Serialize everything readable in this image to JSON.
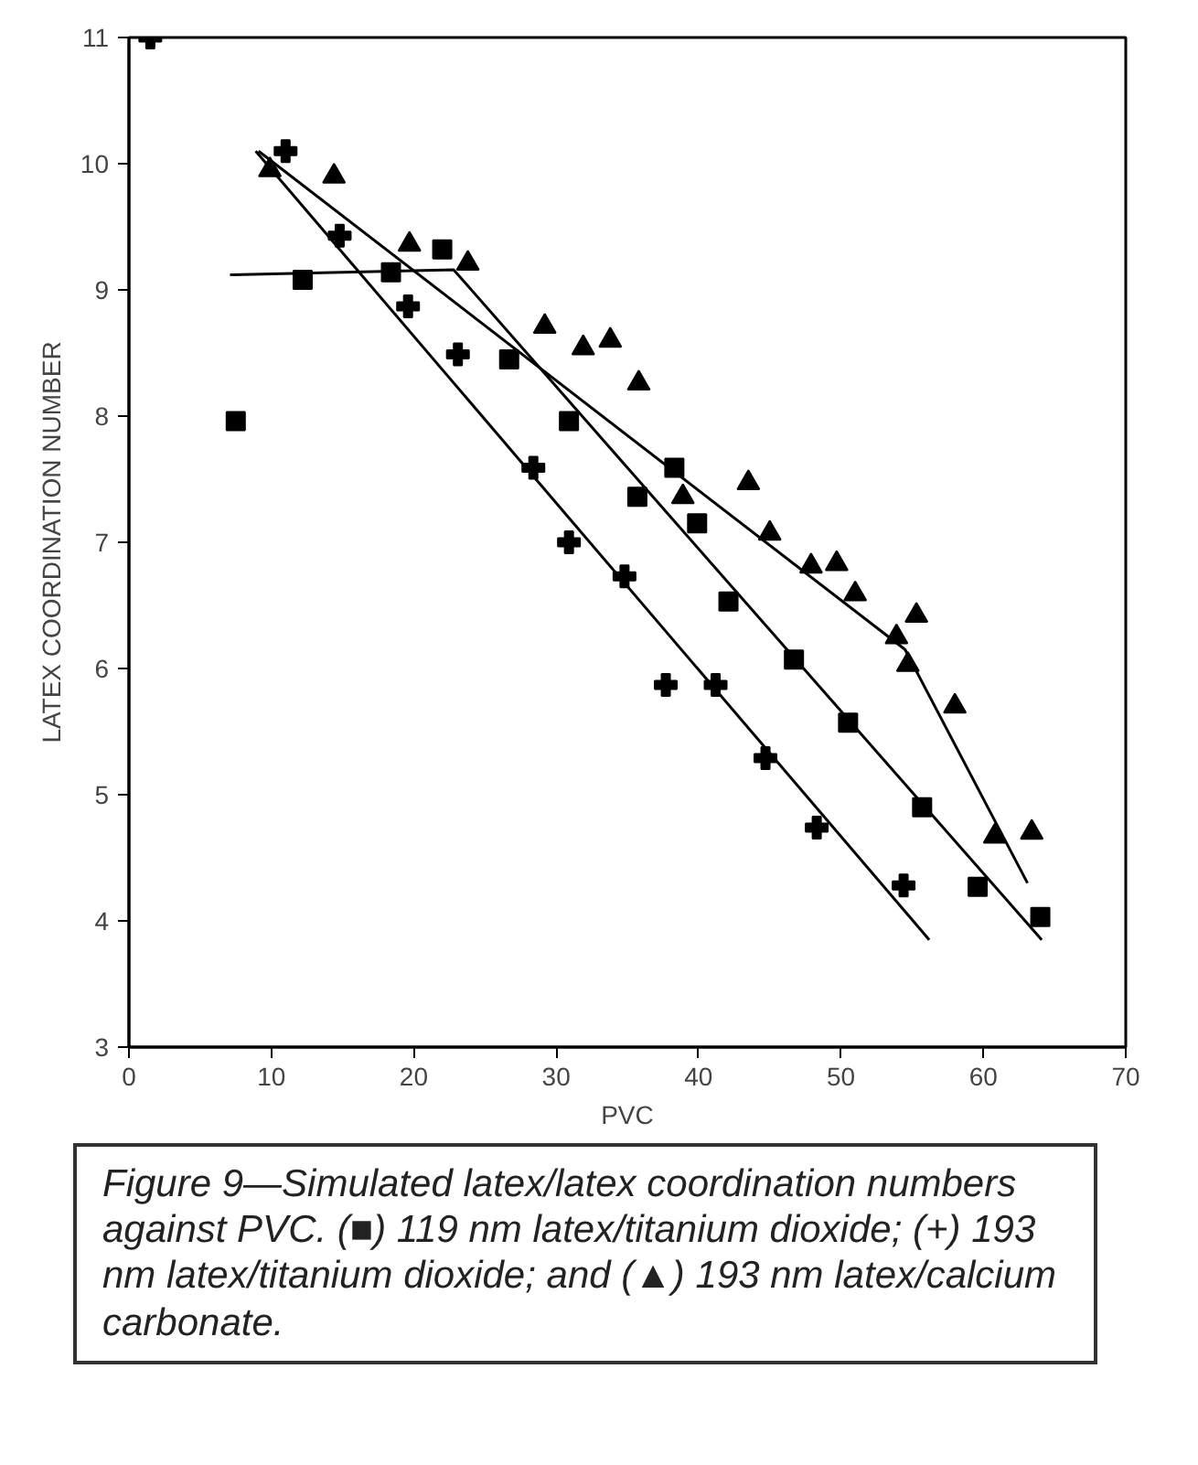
{
  "chart_data": {
    "type": "scatter",
    "xlabel": "PVC",
    "ylabel": "LATEX COORDINATION NUMBER",
    "xlim": [
      0,
      70
    ],
    "ylim": [
      3,
      11
    ],
    "xticks": [
      0,
      10,
      20,
      30,
      40,
      50,
      60,
      70
    ],
    "yticks": [
      3,
      4,
      5,
      6,
      7,
      8,
      9,
      10,
      11
    ],
    "grid": false,
    "series": [
      {
        "marker": "square",
        "color": "#000000",
        "x": [
          7.5,
          12.2,
          18.4,
          22.0,
          26.7,
          30.9,
          35.7,
          38.3,
          39.9,
          42.1,
          46.7,
          50.5,
          55.7,
          59.6,
          64.0
        ],
        "values": [
          7.96,
          9.08,
          9.14,
          9.32,
          8.45,
          7.96,
          7.36,
          7.59,
          7.15,
          6.53,
          6.07,
          5.57,
          4.9,
          4.27,
          4.03
        ]
      },
      {
        "marker": "cross",
        "color": "#000000",
        "x": [
          1.5,
          11.0,
          14.8,
          19.6,
          23.1,
          28.4,
          30.9,
          34.8,
          37.7,
          41.2,
          44.7,
          48.3,
          54.4
        ],
        "values": [
          11.0,
          10.1,
          9.43,
          8.87,
          8.49,
          7.59,
          7.0,
          6.73,
          5.87,
          5.87,
          5.29,
          4.74,
          4.28
        ]
      },
      {
        "marker": "triangle",
        "color": "#000000",
        "x": [
          9.9,
          14.4,
          19.7,
          23.8,
          29.2,
          31.9,
          33.8,
          35.8,
          38.9,
          43.5,
          45.0,
          47.9,
          49.7,
          51.0,
          53.9,
          55.3,
          54.7,
          58.0,
          60.8,
          63.4
        ],
        "values": [
          9.95,
          9.9,
          9.36,
          9.21,
          8.71,
          8.54,
          8.6,
          8.26,
          7.36,
          7.47,
          7.07,
          6.81,
          6.83,
          6.59,
          6.25,
          6.42,
          6.03,
          5.7,
          4.67,
          4.7
        ]
      },
      {
        "type": "line",
        "marker": "none",
        "line_style": "solid",
        "color": "#000000",
        "x": [
          7.1,
          22.8,
          64.1
        ],
        "values": [
          9.12,
          9.16,
          3.85
        ]
      },
      {
        "type": "line",
        "marker": "none",
        "line_style": "solid",
        "color": "#000000",
        "x": [
          8.9,
          56.2
        ],
        "values": [
          10.1,
          3.85
        ]
      },
      {
        "type": "line",
        "marker": "none",
        "line_style": "solid",
        "color": "#000000",
        "x": [
          9.1,
          54.5,
          63.1
        ],
        "values": [
          10.1,
          6.15,
          4.3
        ]
      }
    ],
    "annotations": [
      "Figure 9—Simulated latex/latex coordination numbers against PVC. (■) 119 nm latex/titanium dioxide; (+) 193 nm latex/titanium dioxide; and (▲) 193 nm latex/calcium carbonate."
    ]
  }
}
